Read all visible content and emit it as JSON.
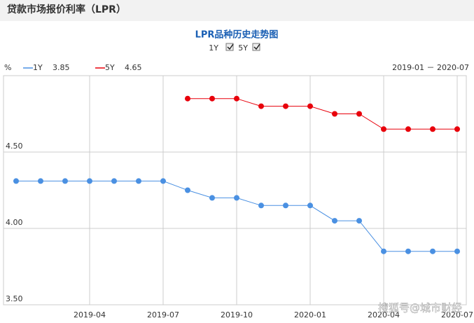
{
  "header": {
    "title": "贷款市场报价利率（LPR）"
  },
  "chart_data": {
    "type": "line",
    "title": "LPR品种历史走势图",
    "toggles": [
      "1Y",
      "5Y"
    ],
    "y_label": "%",
    "date_range": "2019-01 － 2020-07",
    "watermark": "搜狐号@城市财经",
    "categories": [
      null,
      null,
      null,
      "2019-04",
      null,
      null,
      "2019-07",
      null,
      null,
      "2019-10",
      null,
      null,
      "2020-01",
      null,
      null,
      "2020-04",
      null,
      null,
      "2020-07"
    ],
    "series": [
      {
        "name": "1Y",
        "color": "#4a90e2",
        "values": [
          4.31,
          4.31,
          4.31,
          4.31,
          4.31,
          4.31,
          4.31,
          4.25,
          4.2,
          4.2,
          4.15,
          4.15,
          4.15,
          4.05,
          4.05,
          3.85,
          3.85,
          3.85,
          3.85
        ]
      },
      {
        "name": "5Y",
        "color": "#e8000b",
        "values": [
          null,
          null,
          null,
          null,
          null,
          null,
          null,
          4.85,
          4.85,
          4.85,
          4.8,
          4.8,
          4.8,
          4.75,
          4.75,
          4.65,
          4.65,
          4.65,
          4.65
        ]
      }
    ],
    "ylim": [
      3.5,
      5.0
    ],
    "yticks": [
      {
        "value": 3.5,
        "label": "3.50"
      },
      {
        "value": 4.0,
        "label": "4.00"
      },
      {
        "value": 4.5,
        "label": "4.50"
      }
    ],
    "grid": true
  }
}
